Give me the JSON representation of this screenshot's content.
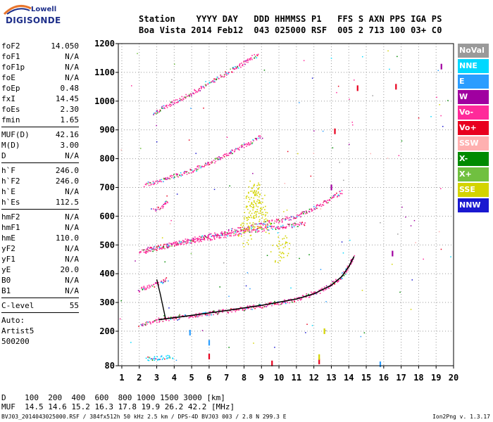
{
  "logo": {
    "line1": "Lowell",
    "line2": "DIGISONDE"
  },
  "header": {
    "row1": "Station    YYYY DAY   DDD HHMMSS P1   FFS S AXN PPS IGA PS",
    "row2": "Boa Vista 2014 Feb12  043 025000 RSF  005 2 713 100 03+ C0"
  },
  "params": {
    "group1": [
      {
        "name": "foF2",
        "value": "14.050"
      },
      {
        "name": "foF1",
        "value": "N/A"
      },
      {
        "name": "foF1p",
        "value": "N/A"
      },
      {
        "name": "foE",
        "value": "N/A"
      },
      {
        "name": "foEp",
        "value": "0.48"
      },
      {
        "name": "fxI",
        "value": "14.45"
      },
      {
        "name": "foEs",
        "value": "2.30"
      },
      {
        "name": "fmin",
        "value": "1.65"
      }
    ],
    "group2": [
      {
        "name": "MUF(D)",
        "value": "42.16"
      },
      {
        "name": "M(D)",
        "value": "3.00"
      },
      {
        "name": "D",
        "value": "N/A"
      }
    ],
    "group3": [
      {
        "name": "h`F",
        "value": "246.0"
      },
      {
        "name": "h`F2",
        "value": "246.0"
      },
      {
        "name": "h`E",
        "value": "N/A"
      },
      {
        "name": "h`Es",
        "value": "112.5"
      }
    ],
    "group4": [
      {
        "name": "hmF2",
        "value": "N/A"
      },
      {
        "name": "hmF1",
        "value": "N/A"
      },
      {
        "name": "hmE",
        "value": "110.0"
      },
      {
        "name": "yF2",
        "value": "N/A"
      },
      {
        "name": "yF1",
        "value": "N/A"
      },
      {
        "name": "yE",
        "value": "20.0"
      },
      {
        "name": "B0",
        "value": "N/A"
      },
      {
        "name": "B1",
        "value": "N/A"
      }
    ],
    "group5": [
      {
        "name": "C-level",
        "value": "55"
      }
    ],
    "autoscale": [
      "Auto:",
      "Artist5",
      "500200"
    ]
  },
  "legend": [
    {
      "label": "NoVal",
      "color": "#9a9a9a"
    },
    {
      "label": "NNE",
      "color": "#00d8ff"
    },
    {
      "label": "E",
      "color": "#2a9dff"
    },
    {
      "label": "W",
      "color": "#a000a0"
    },
    {
      "label": "Vo-",
      "color": "#ff2a9a"
    },
    {
      "label": "Vo+",
      "color": "#e8001e"
    },
    {
      "label": "SSW",
      "color": "#ffb0b0"
    },
    {
      "label": "X-",
      "color": "#008a00"
    },
    {
      "label": "X+",
      "color": "#70c040"
    },
    {
      "label": "SSE",
      "color": "#d4d400"
    },
    {
      "label": "NNW",
      "color": "#1a18d0"
    }
  ],
  "bottom": {
    "row1": "D    100  200  400  600  800 1000 1500 3000 [km]",
    "row2": "MUF  14.5 14.6 15.2 16.3 17.8 19.9 26.2 42.2 [MHz]"
  },
  "footer": {
    "left": "BVJ03_2014043025000.RSF / 384fx512h 50 kHz 2.5 km / DPS-4D BVJ03 003 / 2.8 N 299.3 E",
    "right": "Ion2Png v. 1.3.17"
  },
  "chart_data": {
    "type": "scatter",
    "title": "",
    "xlabel": "",
    "ylabel": "",
    "xlim": [
      0.8,
      20
    ],
    "ylim": [
      80,
      1200
    ],
    "x_ticks": [
      1,
      2,
      3,
      4,
      5,
      6,
      7,
      8,
      9,
      10,
      11,
      12,
      13,
      14,
      15,
      16,
      17,
      18,
      19,
      20
    ],
    "y_ticks": [
      80,
      200,
      300,
      400,
      500,
      600,
      700,
      800,
      900,
      1000,
      1100,
      1200
    ],
    "grid": true,
    "legend_position": "right",
    "trace_profile": {
      "name": "X-",
      "points": [
        [
          3.1,
          240
        ],
        [
          5,
          255
        ],
        [
          7,
          272
        ],
        [
          9,
          290
        ],
        [
          11,
          312
        ],
        [
          12,
          330
        ],
        [
          13,
          360
        ],
        [
          13.6,
          390
        ],
        [
          14,
          425
        ],
        [
          14.3,
          460
        ]
      ]
    },
    "traces": [
      {
        "name": "Vo-",
        "points": [
          [
            2.0,
            225
          ],
          [
            3.5,
            245
          ],
          [
            5,
            255
          ],
          [
            7,
            272
          ],
          [
            9,
            290
          ],
          [
            11,
            312
          ],
          [
            12.5,
            345
          ],
          [
            13.5,
            385
          ],
          [
            14.0,
            430
          ],
          [
            14.25,
            460
          ]
        ]
      },
      {
        "name": "Vo-",
        "points": [
          [
            1.9,
            345
          ],
          [
            3.0,
            365
          ],
          [
            3.2,
            370
          ],
          [
            3.6,
            385
          ]
        ]
      },
      {
        "name": "Vo-",
        "points": [
          [
            2.0,
            480
          ],
          [
            4,
            505
          ],
          [
            6,
            525
          ],
          [
            8,
            548
          ],
          [
            10,
            565
          ],
          [
            11.5,
            575
          ]
        ]
      },
      {
        "name": "Vo-",
        "points": [
          [
            2.3,
            480
          ],
          [
            5,
            520
          ],
          [
            8,
            560
          ],
          [
            11,
            600
          ],
          [
            13,
            660
          ],
          [
            13.6,
            690
          ]
        ]
      },
      {
        "name": "Vo-",
        "points": [
          [
            2.8,
            620
          ],
          [
            3.2,
            630
          ],
          [
            3.6,
            655
          ]
        ]
      },
      {
        "name": "Vo-",
        "points": [
          [
            2.3,
            710
          ],
          [
            5,
            760
          ],
          [
            7,
            815
          ],
          [
            9,
            880
          ]
        ]
      },
      {
        "name": "Vo-",
        "points": [
          [
            2.8,
            960
          ],
          [
            5,
            1030
          ],
          [
            7,
            1100
          ],
          [
            8.8,
            1165
          ]
        ]
      },
      {
        "name": "SSE",
        "points": [
          [
            8.0,
            520
          ],
          [
            8.3,
            600
          ],
          [
            8.6,
            700
          ],
          [
            8.9,
            620
          ],
          [
            9.2,
            560
          ]
        ]
      },
      {
        "name": "SSE",
        "points": [
          [
            9.8,
            470
          ],
          [
            10.2,
            490
          ],
          [
            10.5,
            520
          ]
        ]
      },
      {
        "name": "NNE",
        "points": [
          [
            2.4,
            105
          ],
          [
            3,
            108
          ],
          [
            3.5,
            112
          ],
          [
            3.9,
            110
          ]
        ]
      }
    ],
    "marks": [
      {
        "name": "Vo+",
        "points": [
          [
            9.6,
            88
          ],
          [
            12.3,
            95
          ],
          [
            6,
            112
          ],
          [
            14.5,
            1045
          ],
          [
            13.2,
            895
          ],
          [
            16.7,
            1050
          ]
        ]
      },
      {
        "name": "SSE",
        "points": [
          [
            12.3,
            110
          ],
          [
            12.6,
            200
          ]
        ]
      },
      {
        "name": "E",
        "points": [
          [
            6,
            160
          ],
          [
            15.8,
            85
          ],
          [
            4.9,
            195
          ]
        ]
      },
      {
        "name": "W",
        "points": [
          [
            13,
            700
          ],
          [
            19.3,
            1120
          ],
          [
            16.5,
            470
          ]
        ]
      }
    ]
  }
}
